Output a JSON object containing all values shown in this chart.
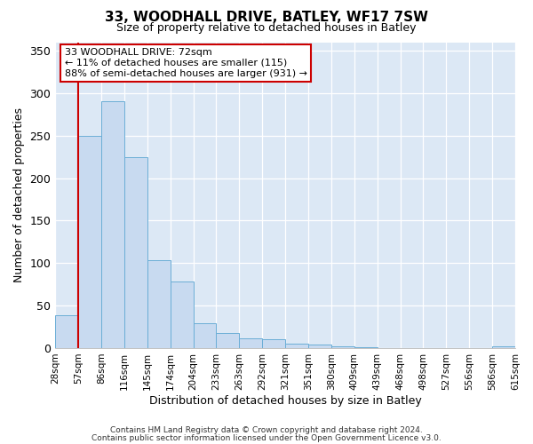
{
  "title": "33, WOODHALL DRIVE, BATLEY, WF17 7SW",
  "subtitle": "Size of property relative to detached houses in Batley",
  "bar_values": [
    39,
    250,
    291,
    225,
    103,
    78,
    29,
    18,
    11,
    10,
    5,
    4,
    2,
    1,
    0,
    0,
    0,
    0,
    0,
    2
  ],
  "bin_labels": [
    "28sqm",
    "57sqm",
    "86sqm",
    "116sqm",
    "145sqm",
    "174sqm",
    "204sqm",
    "233sqm",
    "263sqm",
    "292sqm",
    "321sqm",
    "351sqm",
    "380sqm",
    "409sqm",
    "439sqm",
    "468sqm",
    "498sqm",
    "527sqm",
    "556sqm",
    "586sqm",
    "615sqm"
  ],
  "bar_color": "#c8daf0",
  "bar_edge_color": "#6baed6",
  "redline_x": 1,
  "annotation_title": "33 WOODHALL DRIVE: 72sqm",
  "annotation_line1": "← 11% of detached houses are smaller (115)",
  "annotation_line2": "88% of semi-detached houses are larger (931) →",
  "annotation_box_color": "#ffffff",
  "annotation_box_edge": "#cc0000",
  "redline_color": "#cc0000",
  "xlabel": "Distribution of detached houses by size in Batley",
  "ylabel": "Number of detached properties",
  "ylim": [
    0,
    360
  ],
  "yticks": [
    0,
    50,
    100,
    150,
    200,
    250,
    300,
    350
  ],
  "footnote1": "Contains HM Land Registry data © Crown copyright and database right 2024.",
  "footnote2": "Contains public sector information licensed under the Open Government Licence v3.0.",
  "fig_bg_color": "#ffffff",
  "ax_bg_color": "#dce8f5",
  "grid_color": "#ffffff"
}
